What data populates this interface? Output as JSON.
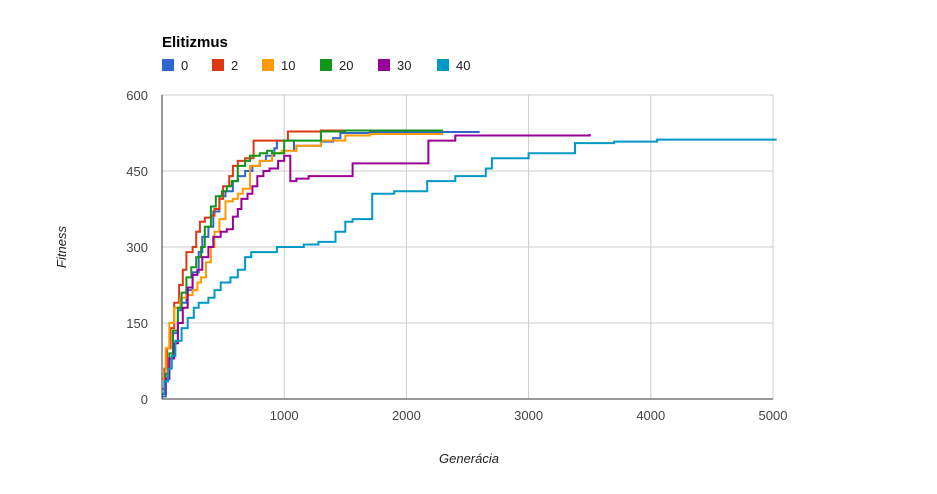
{
  "chart_data": {
    "type": "line",
    "title": "",
    "legend_title": "Elitizmus",
    "legend_position": "top-left",
    "xlabel": "Generácia",
    "ylabel": "Fitness",
    "xlim": [
      0,
      5000
    ],
    "ylim": [
      0,
      600
    ],
    "x_ticks": [
      0,
      1000,
      2000,
      3000,
      4000,
      5000
    ],
    "y_ticks": [
      0,
      150,
      300,
      450,
      600
    ],
    "x_tick_labels": [
      "",
      "1000",
      "2000",
      "3000",
      "4000",
      "5000"
    ],
    "y_tick_labels": [
      "0",
      "150",
      "300",
      "450",
      "600"
    ],
    "grid": true,
    "step": true,
    "series": [
      {
        "name": "0",
        "color": "#3366cc",
        "points": [
          [
            0,
            5
          ],
          [
            30,
            40
          ],
          [
            60,
            80
          ],
          [
            90,
            130
          ],
          [
            130,
            175
          ],
          [
            160,
            190
          ],
          [
            200,
            215
          ],
          [
            250,
            250
          ],
          [
            300,
            290
          ],
          [
            330,
            320
          ],
          [
            380,
            340
          ],
          [
            420,
            370
          ],
          [
            470,
            400
          ],
          [
            520,
            410
          ],
          [
            580,
            430
          ],
          [
            620,
            440
          ],
          [
            680,
            450
          ],
          [
            740,
            460
          ],
          [
            800,
            470
          ],
          [
            850,
            480
          ],
          [
            920,
            495
          ],
          [
            940,
            510
          ],
          [
            1000,
            510
          ],
          [
            1080,
            490
          ],
          [
            1100,
            500
          ],
          [
            1300,
            508
          ],
          [
            1400,
            515
          ],
          [
            1460,
            525
          ],
          [
            1700,
            527
          ],
          [
            2600,
            527
          ]
        ]
      },
      {
        "name": "2",
        "color": "#dc3912",
        "points": [
          [
            0,
            20
          ],
          [
            20,
            60
          ],
          [
            40,
            100
          ],
          [
            70,
            140
          ],
          [
            100,
            190
          ],
          [
            140,
            225
          ],
          [
            170,
            255
          ],
          [
            200,
            290
          ],
          [
            250,
            300
          ],
          [
            280,
            330
          ],
          [
            310,
            350
          ],
          [
            350,
            358
          ],
          [
            400,
            362
          ],
          [
            430,
            375
          ],
          [
            470,
            395
          ],
          [
            500,
            420
          ],
          [
            550,
            440
          ],
          [
            580,
            460
          ],
          [
            620,
            470
          ],
          [
            680,
            475
          ],
          [
            750,
            510
          ],
          [
            1030,
            528
          ],
          [
            1300,
            530
          ],
          [
            2300,
            530
          ]
        ]
      },
      {
        "name": "10",
        "color": "#ff9900",
        "points": [
          [
            0,
            40
          ],
          [
            30,
            100
          ],
          [
            60,
            150
          ],
          [
            100,
            180
          ],
          [
            150,
            200
          ],
          [
            200,
            205
          ],
          [
            250,
            215
          ],
          [
            290,
            230
          ],
          [
            320,
            240
          ],
          [
            360,
            270
          ],
          [
            400,
            300
          ],
          [
            430,
            330
          ],
          [
            470,
            355
          ],
          [
            520,
            390
          ],
          [
            580,
            395
          ],
          [
            620,
            405
          ],
          [
            660,
            415
          ],
          [
            720,
            460
          ],
          [
            800,
            470
          ],
          [
            900,
            485
          ],
          [
            980,
            490
          ],
          [
            1100,
            500
          ],
          [
            1300,
            510
          ],
          [
            1500,
            520
          ],
          [
            1700,
            523
          ],
          [
            2300,
            523
          ]
        ]
      },
      {
        "name": "20",
        "color": "#109618",
        "points": [
          [
            0,
            10
          ],
          [
            30,
            50
          ],
          [
            60,
            90
          ],
          [
            90,
            135
          ],
          [
            130,
            180
          ],
          [
            160,
            210
          ],
          [
            200,
            240
          ],
          [
            240,
            260
          ],
          [
            280,
            280
          ],
          [
            320,
            300
          ],
          [
            350,
            340
          ],
          [
            400,
            380
          ],
          [
            440,
            400
          ],
          [
            490,
            410
          ],
          [
            530,
            420
          ],
          [
            570,
            430
          ],
          [
            620,
            460
          ],
          [
            680,
            470
          ],
          [
            720,
            480
          ],
          [
            800,
            485
          ],
          [
            860,
            490
          ],
          [
            900,
            485
          ],
          [
            1000,
            510
          ],
          [
            1300,
            528
          ],
          [
            1500,
            530
          ],
          [
            2300,
            530
          ]
        ]
      },
      {
        "name": "30",
        "color": "#990099",
        "points": [
          [
            0,
            10
          ],
          [
            30,
            40
          ],
          [
            60,
            80
          ],
          [
            100,
            110
          ],
          [
            130,
            150
          ],
          [
            170,
            180
          ],
          [
            210,
            220
          ],
          [
            250,
            245
          ],
          [
            290,
            255
          ],
          [
            330,
            280
          ],
          [
            380,
            300
          ],
          [
            420,
            320
          ],
          [
            480,
            330
          ],
          [
            530,
            335
          ],
          [
            580,
            360
          ],
          [
            620,
            375
          ],
          [
            650,
            395
          ],
          [
            700,
            405
          ],
          [
            740,
            420
          ],
          [
            780,
            440
          ],
          [
            830,
            450
          ],
          [
            880,
            455
          ],
          [
            950,
            470
          ],
          [
            1000,
            480
          ],
          [
            1050,
            430
          ],
          [
            1100,
            435
          ],
          [
            1200,
            440
          ],
          [
            1560,
            465
          ],
          [
            2180,
            510
          ],
          [
            2400,
            520
          ],
          [
            3500,
            523
          ]
        ]
      },
      {
        "name": "40",
        "color": "#0099c6",
        "points": [
          [
            0,
            10
          ],
          [
            20,
            35
          ],
          [
            50,
            60
          ],
          [
            80,
            85
          ],
          [
            110,
            115
          ],
          [
            160,
            140
          ],
          [
            210,
            160
          ],
          [
            260,
            180
          ],
          [
            300,
            190
          ],
          [
            380,
            200
          ],
          [
            430,
            215
          ],
          [
            480,
            230
          ],
          [
            560,
            240
          ],
          [
            620,
            255
          ],
          [
            680,
            280
          ],
          [
            730,
            290
          ],
          [
            940,
            300
          ],
          [
            1160,
            305
          ],
          [
            1280,
            310
          ],
          [
            1420,
            330
          ],
          [
            1500,
            350
          ],
          [
            1560,
            355
          ],
          [
            1720,
            405
          ],
          [
            1900,
            410
          ],
          [
            2170,
            430
          ],
          [
            2400,
            440
          ],
          [
            2650,
            455
          ],
          [
            2700,
            475
          ],
          [
            3000,
            485
          ],
          [
            3380,
            505
          ],
          [
            3700,
            508
          ],
          [
            4050,
            512
          ],
          [
            5030,
            512
          ]
        ]
      }
    ]
  }
}
